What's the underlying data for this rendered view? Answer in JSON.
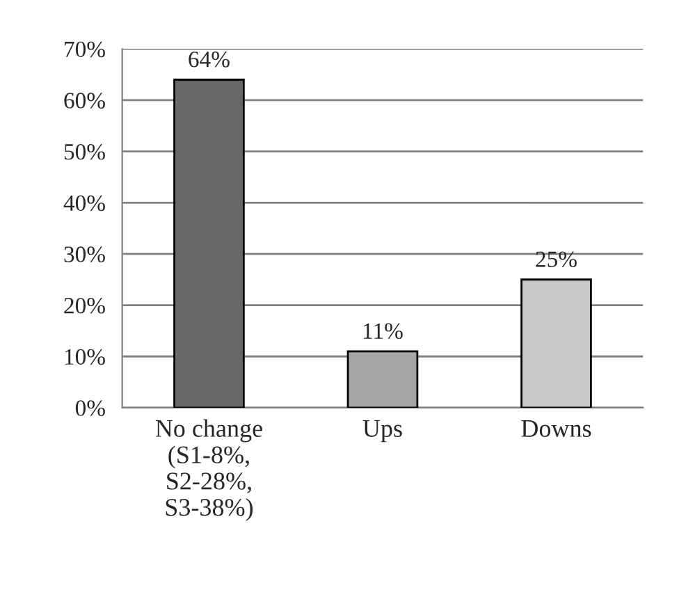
{
  "chart_data": {
    "type": "bar",
    "categories": [
      "No change\n(S1-8%,\nS2-28%,\nS3-38%)",
      "Ups",
      "Downs"
    ],
    "values": [
      64,
      11,
      25
    ],
    "colors": [
      "#686868",
      "#a5a5a5",
      "#c9c9c9"
    ],
    "value_labels": [
      "64%",
      "11%",
      "25%"
    ],
    "ylim": [
      0,
      70
    ],
    "yticks": [
      {
        "value": 0,
        "label": "0%"
      },
      {
        "value": 10,
        "label": "10%"
      },
      {
        "value": 20,
        "label": "20%"
      },
      {
        "value": 30,
        "label": "30%"
      },
      {
        "value": 40,
        "label": "40%"
      },
      {
        "value": 50,
        "label": "50%"
      },
      {
        "value": 60,
        "label": "60%"
      },
      {
        "value": 70,
        "label": "70%"
      }
    ],
    "grid": "y"
  }
}
